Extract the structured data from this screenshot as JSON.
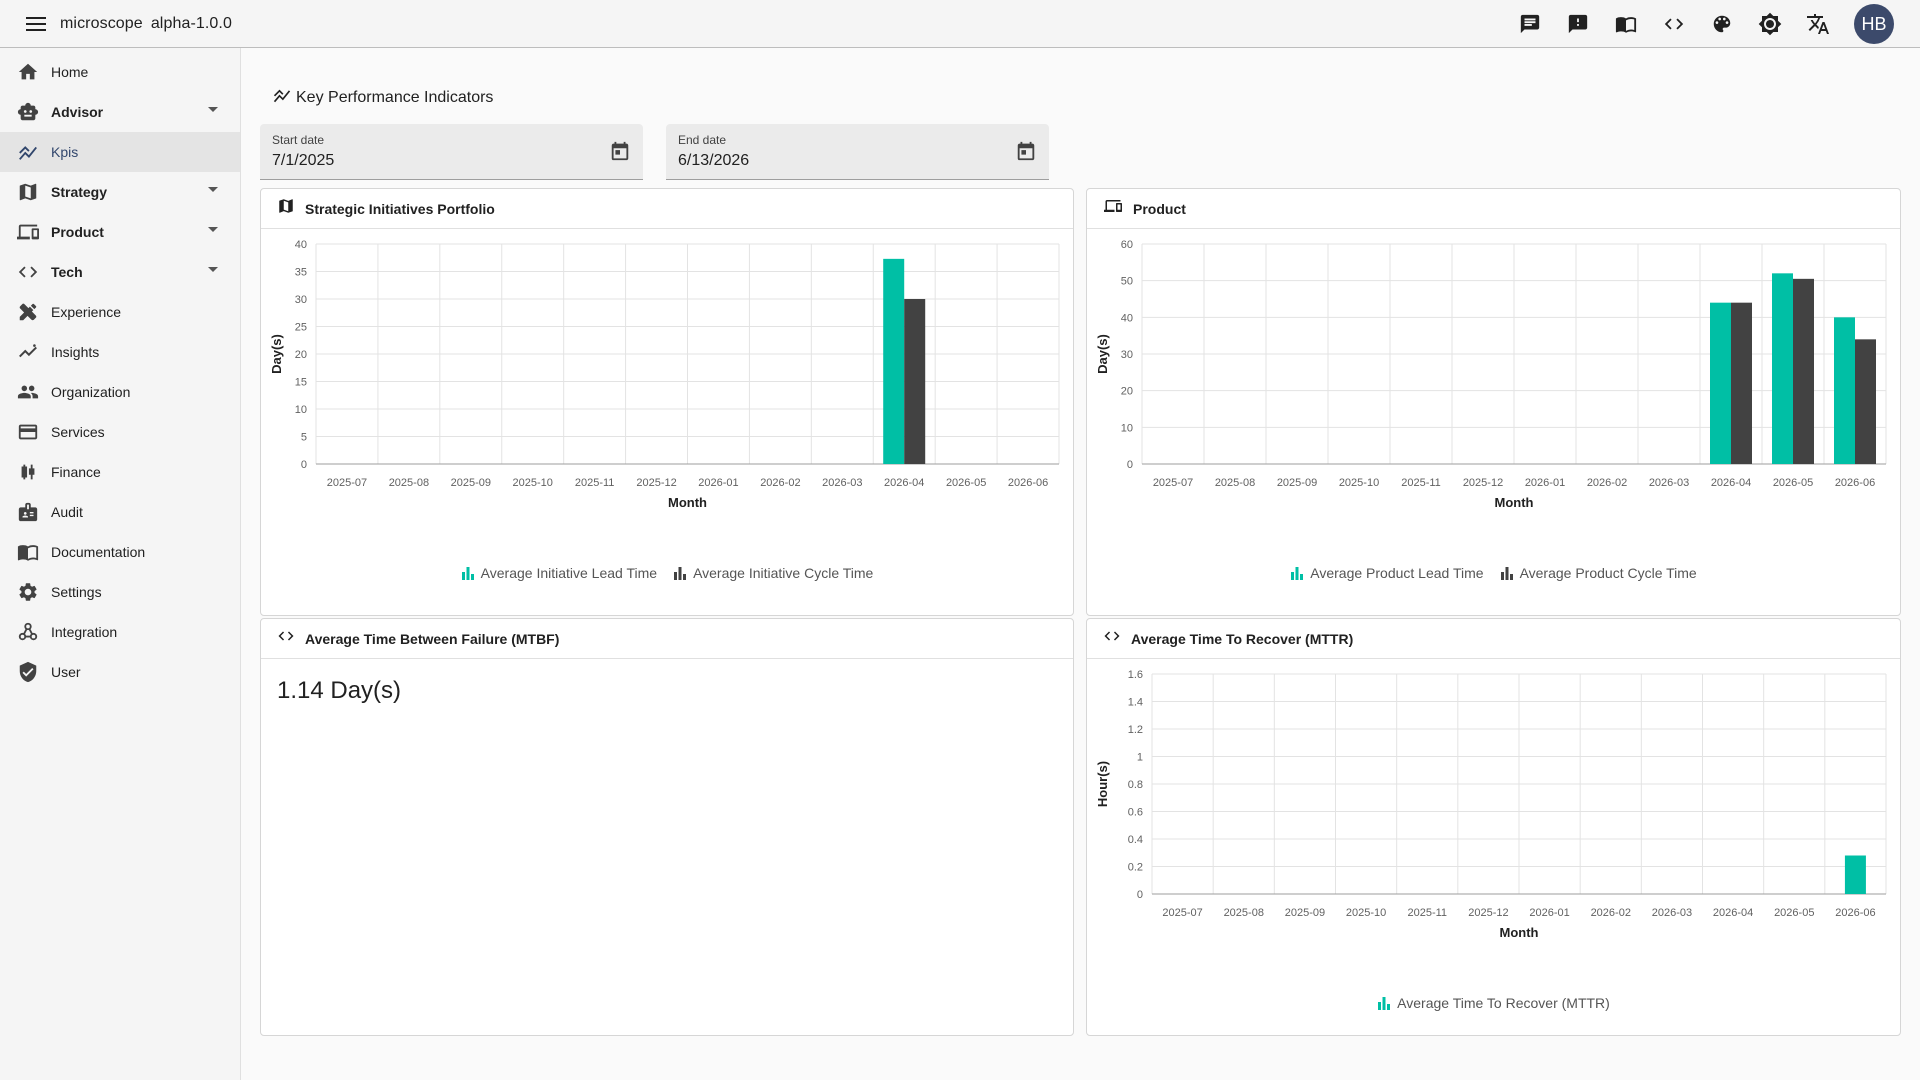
{
  "app": {
    "name": "microscope",
    "version": "alpha-1.0.0",
    "avatar_initials": "HB"
  },
  "topbar_icons": [
    "chat-icon",
    "feedback-icon",
    "book-icon",
    "code-icon",
    "palette-icon",
    "brightness-icon",
    "translate-icon"
  ],
  "sidebar": {
    "items": [
      {
        "label": "Home",
        "icon": "home-icon",
        "bold": false,
        "expandable": false
      },
      {
        "label": "Advisor",
        "icon": "robot-icon",
        "bold": true,
        "expandable": true
      },
      {
        "label": "Kpis",
        "icon": "kpi-chart-icon",
        "bold": false,
        "expandable": false,
        "active": true
      },
      {
        "label": "Strategy",
        "icon": "map-icon",
        "bold": true,
        "expandable": true
      },
      {
        "label": "Product",
        "icon": "devices-icon",
        "bold": true,
        "expandable": true
      },
      {
        "label": "Tech",
        "icon": "code-icon",
        "bold": true,
        "expandable": true
      },
      {
        "label": "Experience",
        "icon": "design-services-icon",
        "bold": false,
        "expandable": false
      },
      {
        "label": "Insights",
        "icon": "insights-icon",
        "bold": false,
        "expandable": false
      },
      {
        "label": "Organization",
        "icon": "people-icon",
        "bold": false,
        "expandable": false
      },
      {
        "label": "Services",
        "icon": "credit-card-icon",
        "bold": false,
        "expandable": false
      },
      {
        "label": "Finance",
        "icon": "candlestick-icon",
        "bold": false,
        "expandable": false
      },
      {
        "label": "Audit",
        "icon": "badge-icon",
        "bold": false,
        "expandable": false
      },
      {
        "label": "Documentation",
        "icon": "menu-book-icon",
        "bold": false,
        "expandable": false
      },
      {
        "label": "Settings",
        "icon": "gear-icon",
        "bold": false,
        "expandable": false
      },
      {
        "label": "Integration",
        "icon": "webhook-icon",
        "bold": false,
        "expandable": false
      },
      {
        "label": "User",
        "icon": "shield-user-icon",
        "bold": false,
        "expandable": false
      }
    ]
  },
  "page": {
    "title": "Key Performance Indicators",
    "start_date": {
      "label": "Start date",
      "value": "7/1/2025"
    },
    "end_date": {
      "label": "End date",
      "value": "6/13/2026"
    }
  },
  "colors": {
    "teal": "#00bfa5",
    "dark": "#424242",
    "accent": "#31466c"
  },
  "cards": {
    "strategic": {
      "title": "Strategic Initiatives Portfolio"
    },
    "product": {
      "title": "Product"
    },
    "mtbf": {
      "title": "Average Time Between Failure (MTBF)",
      "value": "1.14 Day(s)"
    },
    "mttr": {
      "title": "Average Time To Recover (MTTR)"
    }
  },
  "chart_data": [
    {
      "id": "strategic",
      "type": "bar",
      "categories": [
        "2025-07",
        "2025-08",
        "2025-09",
        "2025-10",
        "2025-11",
        "2025-12",
        "2026-01",
        "2026-02",
        "2026-03",
        "2026-04",
        "2026-05",
        "2026-06"
      ],
      "series": [
        {
          "name": "Average Initiative Lead Time",
          "color": "#00bfa5",
          "values": [
            0,
            0,
            0,
            0,
            0,
            0,
            0,
            0,
            0,
            37.3,
            0,
            0
          ]
        },
        {
          "name": "Average Initiative Cycle Time",
          "color": "#424242",
          "values": [
            0,
            0,
            0,
            0,
            0,
            0,
            0,
            0,
            0,
            30,
            0,
            0
          ]
        }
      ],
      "xlabel": "Month",
      "ylabel": "Day(s)",
      "ylim": [
        0,
        40
      ],
      "yticks": [
        0,
        5,
        10,
        15,
        20,
        25,
        30,
        35,
        40
      ],
      "grid": true,
      "legend": "bottom"
    },
    {
      "id": "product",
      "type": "bar",
      "categories": [
        "2025-07",
        "2025-08",
        "2025-09",
        "2025-10",
        "2025-11",
        "2025-12",
        "2026-01",
        "2026-02",
        "2026-03",
        "2026-04",
        "2026-05",
        "2026-06"
      ],
      "series": [
        {
          "name": "Average Product Lead Time",
          "color": "#00bfa5",
          "values": [
            0,
            0,
            0,
            0,
            0,
            0,
            0,
            0,
            0,
            44,
            52,
            40
          ]
        },
        {
          "name": "Average Product Cycle Time",
          "color": "#424242",
          "values": [
            0,
            0,
            0,
            0,
            0,
            0,
            0,
            0,
            0,
            44,
            50.5,
            34
          ]
        }
      ],
      "xlabel": "Month",
      "ylabel": "Day(s)",
      "ylim": [
        0,
        60
      ],
      "yticks": [
        0,
        10,
        20,
        30,
        40,
        50,
        60
      ],
      "grid": true,
      "legend": "bottom"
    },
    {
      "id": "mttr",
      "type": "bar",
      "categories": [
        "2025-07",
        "2025-08",
        "2025-09",
        "2025-10",
        "2025-11",
        "2025-12",
        "2026-01",
        "2026-02",
        "2026-03",
        "2026-04",
        "2026-05",
        "2026-06"
      ],
      "series": [
        {
          "name": "Average Time To Recover (MTTR)",
          "color": "#00bfa5",
          "values": [
            0,
            0,
            0,
            0,
            0,
            0,
            0,
            0,
            0,
            0,
            0,
            0.28
          ]
        }
      ],
      "xlabel": "Month",
      "ylabel": "Hour(s)",
      "ylim": [
        0,
        1.6
      ],
      "yticks": [
        "0",
        "0.2",
        "0.4",
        "0.6",
        "0.8",
        "1",
        "1.2",
        "1.4",
        "1.6"
      ],
      "grid": true,
      "legend": "bottom"
    }
  ]
}
